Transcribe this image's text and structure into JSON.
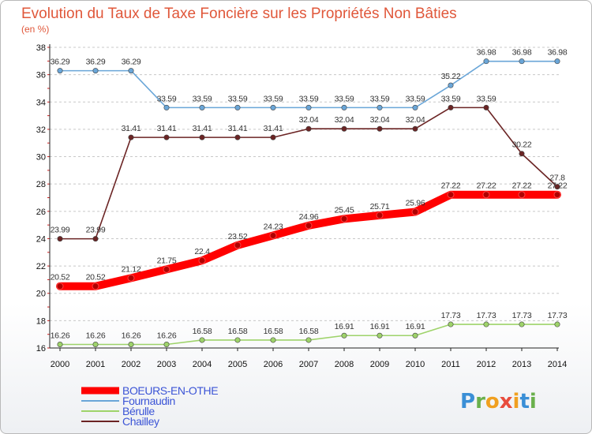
{
  "chart_data": {
    "type": "line",
    "title": "Evolution du Taux de Taxe Foncière sur les Propriétés Non Bâties",
    "subtitle": "(en %)",
    "x": [
      "2000",
      "2001",
      "2002",
      "2003",
      "2004",
      "2005",
      "2006",
      "2007",
      "2008",
      "2009",
      "2010",
      "2011",
      "2012",
      "2013",
      "2014"
    ],
    "ylim": [
      16,
      38
    ],
    "yticks": [
      16,
      18,
      20,
      22,
      24,
      26,
      28,
      30,
      32,
      34,
      36,
      38
    ],
    "grid": "horizontal dashed",
    "legend_position": "bottom-left",
    "series": [
      {
        "name": "BOEURS-EN-OTHE",
        "color": "#ff0000",
        "values": [
          20.52,
          20.52,
          21.12,
          21.75,
          22.4,
          23.52,
          24.23,
          24.96,
          25.45,
          25.71,
          25.96,
          27.22,
          27.22,
          27.22,
          27.22
        ],
        "labels": [
          "20.52",
          "20.52",
          "21.12",
          "21.75",
          "22.4",
          "23.52",
          "24.23",
          "24.96",
          "25.45",
          "25.71",
          "25.96",
          "27.22",
          "27.22",
          "27.22",
          "27.22"
        ]
      },
      {
        "name": "Fournaudin",
        "color": "#6aa6d8",
        "values": [
          36.29,
          36.29,
          36.29,
          33.59,
          33.59,
          33.59,
          33.59,
          33.59,
          33.59,
          33.59,
          33.59,
          35.22,
          36.98,
          36.98,
          36.98
        ],
        "labels": [
          "36.29",
          "36.29",
          "36.29",
          "33.59",
          "33.59",
          "33.59",
          "33.59",
          "33.59",
          "33.59",
          "33.59",
          "33.59",
          "35.22",
          "36.98",
          "36.98",
          "36.98"
        ]
      },
      {
        "name": "Bérulle",
        "color": "#9ed36a",
        "values": [
          16.26,
          16.26,
          16.26,
          16.26,
          16.58,
          16.58,
          16.58,
          16.58,
          16.91,
          16.91,
          16.91,
          17.73,
          17.73,
          17.73,
          17.73
        ],
        "labels": [
          "16.26",
          "16.26",
          "16.26",
          "16.26",
          "16.58",
          "16.58",
          "16.58",
          "16.58",
          "16.91",
          "16.91",
          "16.91",
          "17.73",
          "17.73",
          "17.73",
          "17.73"
        ]
      },
      {
        "name": "Chailley",
        "color": "#6b2424",
        "values": [
          23.99,
          23.99,
          31.41,
          31.41,
          31.41,
          31.41,
          31.41,
          32.04,
          32.04,
          32.04,
          32.04,
          33.59,
          33.59,
          30.22,
          27.8
        ],
        "labels": [
          "23.99",
          "23.99",
          "31.41",
          "31.41",
          "31.41",
          "31.41",
          "31.41",
          "32.04",
          "32.04",
          "32.04",
          "32.04",
          "33.59",
          "33.59",
          "30.22",
          "27.8"
        ]
      }
    ]
  },
  "logo": {
    "letters": [
      "P",
      "r",
      "o",
      "x",
      "i",
      "t",
      "i"
    ],
    "colors": [
      "#3a8fd6",
      "#6ab04c",
      "#f0a020",
      "#e84c3d",
      "#f0a020",
      "#3a8fd6",
      "#6ab04c"
    ]
  }
}
